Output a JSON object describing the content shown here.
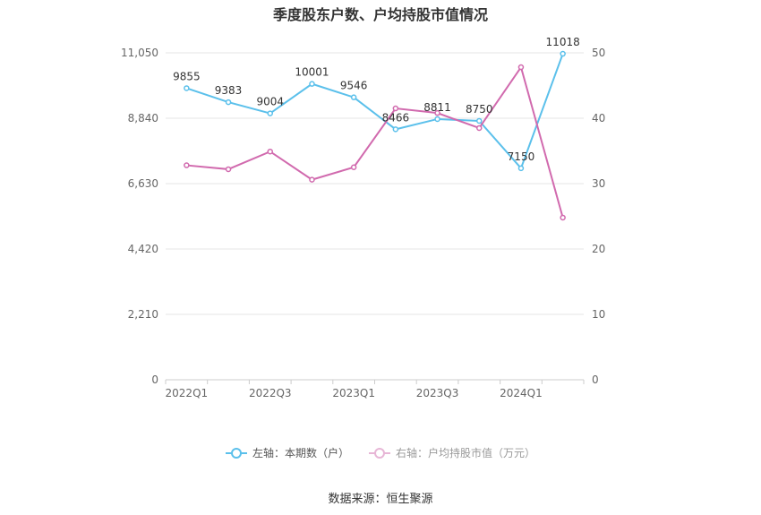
{
  "chart_data": {
    "type": "line",
    "title": "季度股东户数、户均持股市值情况",
    "x": [
      "2022Q1",
      "2022Q2",
      "2022Q3",
      "2022Q4",
      "2023Q1",
      "2023Q2",
      "2023Q3",
      "2023Q4",
      "2024Q1",
      "2024Q2"
    ],
    "x_tick_labels": [
      "2022Q1",
      "2022Q3",
      "2023Q1",
      "2023Q3",
      "2024Q1"
    ],
    "y_left": {
      "ticks": [
        "0",
        "2,210",
        "4,420",
        "6,630",
        "8,840",
        "11,050"
      ],
      "ylim": [
        0,
        11050
      ]
    },
    "y_right": {
      "ticks": [
        "0",
        "10",
        "20",
        "30",
        "40",
        "50"
      ],
      "ylim": [
        0,
        50
      ]
    },
    "grid": true,
    "legend_position": "bottom",
    "series": [
      {
        "name": "左轴：本期数（户）",
        "axis": "left",
        "color": "#5bc0eb",
        "values": [
          9855,
          9383,
          9004,
          10001,
          9546,
          8466,
          8811,
          8750,
          7150,
          11018
        ],
        "labels": [
          "9855",
          "9383",
          "9004",
          "10001",
          "9546",
          "8466",
          "8811",
          "8750",
          "7150",
          "11018"
        ]
      },
      {
        "name": "右轴：户均持股市值（万元）",
        "axis": "right",
        "color": "#d16aae",
        "values": [
          32.8,
          32.2,
          34.9,
          30.6,
          32.5,
          41.5,
          40.8,
          38.5,
          47.8,
          24.8
        ]
      }
    ]
  },
  "footer": {
    "source": "数据来源：恒生聚源"
  }
}
